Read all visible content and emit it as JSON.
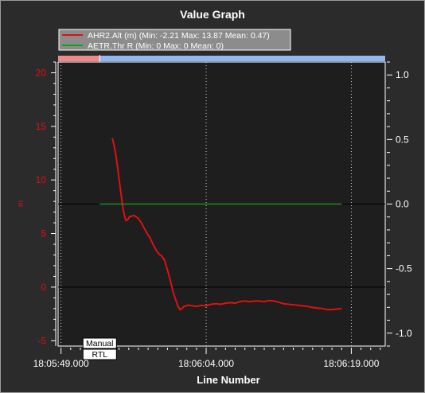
{
  "chart_data": {
    "type": "line",
    "title": "Value Graph",
    "xlabel": "Line Number",
    "ylabel_left": "m",
    "ylim_left": [
      -5.5,
      21
    ],
    "ylim_right": [
      -1.1,
      1.1
    ],
    "left_ticks": [
      20,
      15,
      10,
      5,
      0,
      -5
    ],
    "right_ticks": [
      "1.0",
      "0.5",
      "0.0",
      "-0.5",
      "-1.0"
    ],
    "right_tick_values": [
      1.0,
      0.5,
      0.0,
      -0.5,
      -1.0
    ],
    "x_ticks": [
      "18:05:49.000",
      "18:06:04.000",
      "18:06:19.000"
    ],
    "x_tick_values": [
      0,
      15,
      30
    ],
    "xlim": [
      -0.3,
      33.5
    ],
    "grid": true,
    "legend_position": "top-left",
    "series": [
      {
        "name": "AHR2.Alt (m) (Min: -2.21 Max: 13.87 Mean: 0.47)",
        "color": "#e01010",
        "axis": "left",
        "x": [
          5.3,
          5.5,
          5.7,
          5.9,
          6.1,
          6.3,
          6.5,
          6.7,
          6.9,
          7.1,
          7.3,
          7.5,
          7.7,
          8.0,
          8.3,
          8.6,
          8.9,
          9.2,
          9.5,
          9.8,
          10.1,
          10.4,
          10.7,
          11.0,
          11.3,
          11.6,
          11.9,
          12.1,
          12.3,
          12.5,
          12.7,
          12.9,
          13.1,
          13.3,
          13.6,
          14.0,
          14.5,
          15.0,
          15.5,
          16.0,
          16.5,
          17.0,
          17.5,
          18.0,
          18.5,
          19.0,
          19.5,
          20.0,
          20.5,
          21.0,
          21.5,
          22.0,
          22.5,
          23.0,
          23.5,
          24.0,
          24.5,
          25.0,
          25.5,
          26.0,
          26.5,
          27.0,
          27.5,
          28.0,
          28.5,
          29.0
        ],
        "values": [
          13.9,
          13.2,
          12.1,
          10.8,
          9.4,
          8.0,
          6.9,
          6.2,
          6.3,
          6.6,
          6.6,
          6.7,
          6.6,
          6.4,
          6.0,
          5.5,
          5.0,
          4.6,
          4.0,
          3.5,
          3.1,
          2.9,
          2.5,
          1.6,
          0.6,
          -0.5,
          -1.3,
          -1.8,
          -2.1,
          -2.0,
          -1.8,
          -1.75,
          -1.7,
          -1.7,
          -1.75,
          -1.8,
          -1.7,
          -1.75,
          -1.6,
          -1.55,
          -1.6,
          -1.5,
          -1.45,
          -1.5,
          -1.35,
          -1.3,
          -1.35,
          -1.3,
          -1.3,
          -1.35,
          -1.25,
          -1.3,
          -1.4,
          -1.55,
          -1.6,
          -1.65,
          -1.7,
          -1.75,
          -1.8,
          -1.9,
          -1.95,
          -2.0,
          -2.1,
          -2.1,
          -2.05,
          -2.0
        ]
      },
      {
        "name": "AETR.Thr R (Min: 0 Max: 0 Mean: 0)",
        "color": "#18a018",
        "axis": "right",
        "x": [
          4.0,
          29.0
        ],
        "values": [
          0,
          0
        ]
      }
    ],
    "mode_bar": {
      "segments": [
        {
          "x_start": -0.3,
          "x_end": 4.0,
          "color": "#f08a8a"
        },
        {
          "x_start": 4.0,
          "x_end": 33.5,
          "color": "#8fb8f0"
        }
      ]
    },
    "annotations": [
      {
        "label": "Manual",
        "x": 4.0
      },
      {
        "label": "RTL",
        "x": 4.0
      }
    ]
  }
}
